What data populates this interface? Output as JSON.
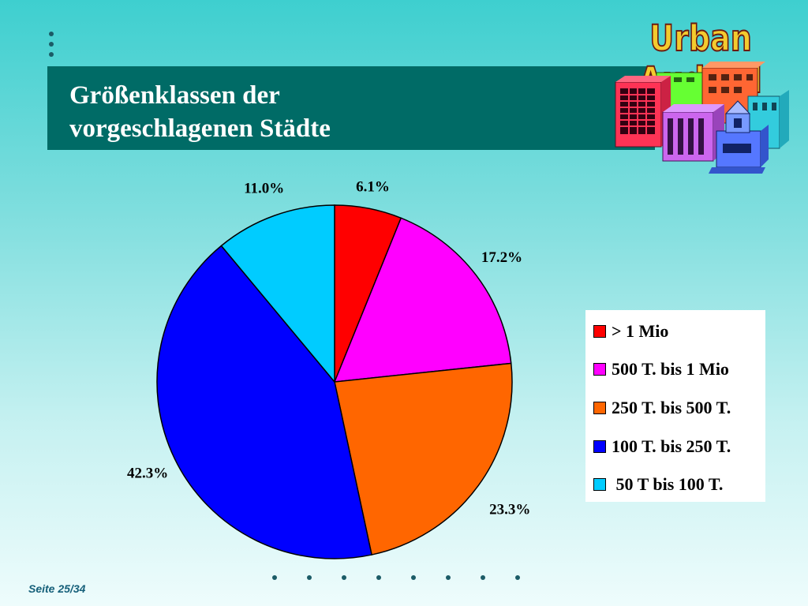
{
  "slide": {
    "title_line1": "Größenklassen der",
    "title_line2": "vorgeschlagenen Städte",
    "logo_text": "Urban Audit II",
    "logo_icon": "city-buildings-icon",
    "footer": "Seite 25/34"
  },
  "chart_data": {
    "type": "pie",
    "title": "",
    "legend_position": "right",
    "start_angle_deg": 0,
    "direction": "clockwise",
    "slices": [
      {
        "label": "> 1 Mio",
        "value": 6.1,
        "display": "6.1%",
        "color": "#ff0000"
      },
      {
        "label": "500 T. bis 1 Mio",
        "value": 17.2,
        "display": "17.2%",
        "color": "#ff00ff"
      },
      {
        "label": "250 T. bis 500 T.",
        "value": 23.3,
        "display": "23.3%",
        "color": "#ff6600"
      },
      {
        "label": "100 T. bis 250 T.",
        "value": 42.3,
        "display": "42.3%",
        "color": "#0000ff"
      },
      {
        "label": " 50 T bis 100 T.",
        "value": 11.0,
        "display": "11.0%",
        "color": "#00ccff"
      }
    ]
  }
}
